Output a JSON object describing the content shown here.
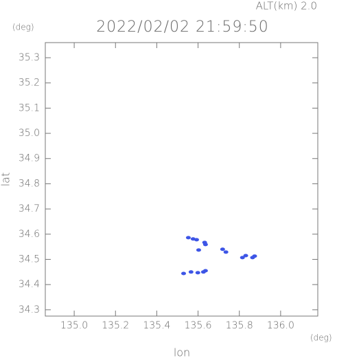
{
  "chart_data": {
    "type": "scatter",
    "annotation": "ALT(km) 2.0",
    "title": "2022/02/02 21:59:50",
    "y_unit": "(deg)",
    "x_unit": "(deg)",
    "xlabel": "lon",
    "ylabel": "lat",
    "xlim": [
      134.86,
      136.18
    ],
    "ylim": [
      34.275,
      35.36
    ],
    "xticks": [
      {
        "value": 135,
        "label": "135.0"
      },
      135.2,
      135.4,
      135.6,
      135.8,
      {
        "value": 136,
        "label": "136.0"
      }
    ],
    "yticks": [
      34.3,
      34.4,
      34.5,
      34.6,
      34.7,
      34.8,
      34.9,
      {
        "value": 35,
        "label": "35.0"
      },
      35.1,
      35.2,
      35.3
    ],
    "color": "#3d55e6",
    "x": [
      135.553,
      135.576,
      135.593,
      135.632,
      135.636,
      135.603,
      135.719,
      135.735,
      135.815,
      135.831,
      135.864,
      135.874,
      135.53,
      135.566,
      135.599,
      135.626,
      135.636
    ],
    "values": [
      34.586,
      34.581,
      34.578,
      34.567,
      34.559,
      34.537,
      34.54,
      34.529,
      34.507,
      34.515,
      34.507,
      34.513,
      34.444,
      34.45,
      34.447,
      34.45,
      34.455
    ]
  }
}
